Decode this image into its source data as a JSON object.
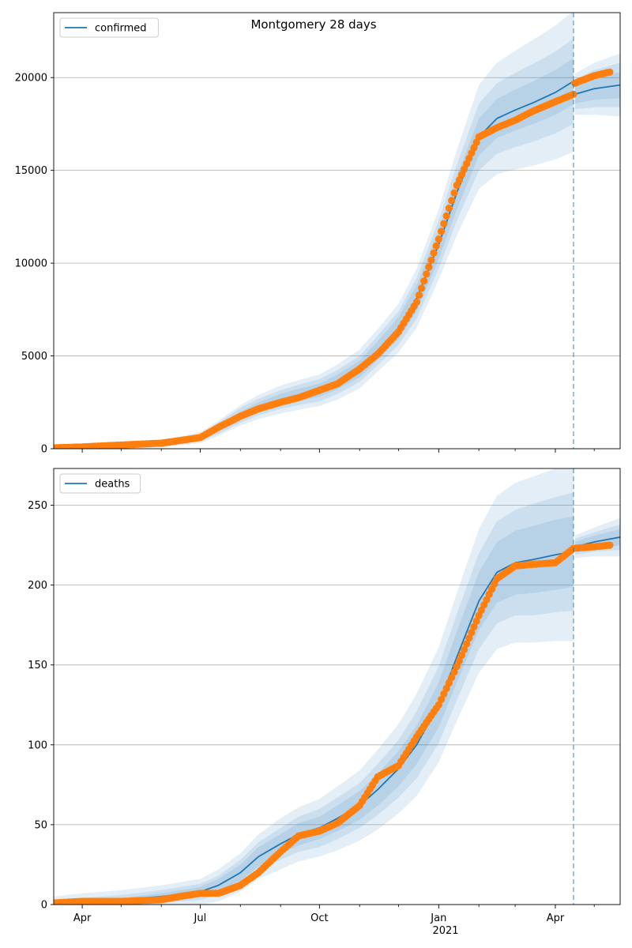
{
  "figure": {
    "suptitle": "Montgomery 28 days"
  },
  "colors": {
    "line": "#1f77b4",
    "points": "#ff7f0e",
    "band": "#1f77b4",
    "grid": "#b0b0b0",
    "forecast_line": "#1f77b4"
  },
  "x_axis": {
    "range": [
      "2020-03-10",
      "2021-05-21"
    ],
    "ticks": [
      {
        "label": "Apr",
        "date": "2020-04-01"
      },
      {
        "label": "Jul",
        "date": "2020-07-01"
      },
      {
        "label": "Oct",
        "date": "2020-10-01"
      },
      {
        "label": "Jan",
        "date": "2021-01-01",
        "year": "2021"
      },
      {
        "label": "Apr",
        "date": "2021-04-01"
      }
    ],
    "minor_ticks": [
      "2020-05-01",
      "2020-06-01",
      "2020-08-01",
      "2020-09-01",
      "2020-11-01",
      "2020-12-01",
      "2021-02-01",
      "2021-03-01",
      "2021-05-01"
    ]
  },
  "chart_data": [
    {
      "type": "line",
      "legend": "confirmed",
      "legend_position": "top-left",
      "grid": "y",
      "forecast_start": "2021-04-15",
      "ylim": [
        0,
        23500
      ],
      "yticks": [
        0,
        5000,
        10000,
        15000,
        20000
      ],
      "model": {
        "x": [
          "2020-03-10",
          "2020-04-01",
          "2020-05-01",
          "2020-06-01",
          "2020-07-01",
          "2020-07-15",
          "2020-08-01",
          "2020-08-15",
          "2020-09-01",
          "2020-09-15",
          "2020-10-01",
          "2020-10-15",
          "2020-11-01",
          "2020-11-15",
          "2020-12-01",
          "2020-12-15",
          "2021-01-01",
          "2021-01-15",
          "2021-02-01",
          "2021-02-15",
          "2021-03-01",
          "2021-03-15",
          "2021-04-01",
          "2021-04-15",
          "2021-04-16",
          "2021-05-01",
          "2021-05-21"
        ],
        "y": [
          50,
          100,
          150,
          250,
          600,
          1100,
          1800,
          2250,
          2650,
          2900,
          3150,
          3600,
          4300,
          5300,
          6500,
          8100,
          11000,
          13800,
          16800,
          17800,
          18250,
          18650,
          19200,
          19800,
          19100,
          19400,
          19600
        ],
        "band_inner": [
          10,
          25,
          40,
          60,
          100,
          150,
          200,
          250,
          300,
          330,
          350,
          400,
          450,
          500,
          600,
          700,
          800,
          900,
          1000,
          1050,
          1100,
          1150,
          1200,
          1250,
          500,
          600,
          700
        ],
        "band_mid": [
          20,
          50,
          80,
          120,
          200,
          300,
          400,
          450,
          500,
          550,
          600,
          650,
          700,
          800,
          900,
          1100,
          1300,
          1500,
          1800,
          1900,
          2000,
          2100,
          2200,
          2300,
          800,
          1000,
          1200
        ],
        "band_outer": [
          40,
          80,
          120,
          180,
          300,
          400,
          550,
          650,
          750,
          800,
          850,
          950,
          1050,
          1150,
          1300,
          1600,
          1900,
          2300,
          2800,
          3000,
          3200,
          3400,
          3600,
          3800,
          1100,
          1400,
          1700
        ]
      },
      "observed": {
        "x": [
          "2020-03-10",
          "2020-04-01",
          "2020-05-01",
          "2020-06-01",
          "2020-07-01",
          "2020-07-15",
          "2020-08-01",
          "2020-08-15",
          "2020-09-01",
          "2020-09-15",
          "2020-10-01",
          "2020-10-15",
          "2020-11-01",
          "2020-11-15",
          "2020-12-01",
          "2020-12-15",
          "2021-01-01",
          "2021-01-15",
          "2021-02-01",
          "2021-02-15",
          "2021-03-01",
          "2021-03-15",
          "2021-04-01",
          "2021-04-15",
          "2021-04-16",
          "2021-05-01",
          "2021-05-13"
        ],
        "y": [
          50,
          100,
          200,
          300,
          600,
          1150,
          1750,
          2150,
          2500,
          2750,
          3150,
          3500,
          4300,
          5100,
          6300,
          7900,
          11300,
          14200,
          16800,
          17300,
          17700,
          18200,
          18700,
          19100,
          19700,
          20100,
          20300
        ]
      }
    },
    {
      "type": "line",
      "legend": "deaths",
      "legend_position": "top-left",
      "grid": "y",
      "forecast_start": "2021-04-15",
      "ylim": [
        0,
        273
      ],
      "yticks": [
        0,
        50,
        100,
        150,
        200,
        250
      ],
      "model": {
        "x": [
          "2020-03-10",
          "2020-04-01",
          "2020-05-01",
          "2020-06-01",
          "2020-07-01",
          "2020-07-15",
          "2020-08-01",
          "2020-08-15",
          "2020-09-01",
          "2020-09-15",
          "2020-10-01",
          "2020-10-15",
          "2020-11-01",
          "2020-11-15",
          "2020-12-01",
          "2020-12-15",
          "2021-01-01",
          "2021-01-15",
          "2021-02-01",
          "2021-02-15",
          "2021-03-01",
          "2021-03-15",
          "2021-04-01",
          "2021-04-15",
          "2021-04-16",
          "2021-05-01",
          "2021-05-21"
        ],
        "y": [
          1,
          2,
          3,
          5,
          8,
          12,
          20,
          30,
          38,
          44,
          48,
          54,
          62,
          72,
          85,
          100,
          125,
          155,
          190,
          208,
          214,
          216,
          219,
          221,
          224,
          227,
          230
        ],
        "band_inner": [
          1,
          1,
          1,
          2,
          3,
          4,
          5,
          6,
          6,
          7,
          7,
          8,
          9,
          10,
          11,
          12,
          14,
          16,
          18,
          19,
          20,
          21,
          22,
          22,
          3,
          4,
          5
        ],
        "band_mid": [
          2,
          2,
          3,
          4,
          5,
          6,
          8,
          9,
          10,
          11,
          12,
          13,
          14,
          16,
          18,
          21,
          24,
          27,
          30,
          32,
          33,
          35,
          36,
          37,
          5,
          6,
          8
        ],
        "band_outer": [
          4,
          5,
          6,
          7,
          8,
          10,
          12,
          14,
          16,
          17,
          18,
          20,
          22,
          25,
          28,
          32,
          36,
          40,
          45,
          48,
          50,
          52,
          54,
          56,
          7,
          9,
          12
        ]
      },
      "observed": {
        "x": [
          "2020-03-10",
          "2020-04-01",
          "2020-05-01",
          "2020-06-01",
          "2020-06-15",
          "2020-07-01",
          "2020-07-15",
          "2020-08-01",
          "2020-08-15",
          "2020-09-01",
          "2020-09-15",
          "2020-10-01",
          "2020-10-15",
          "2020-11-01",
          "2020-11-15",
          "2020-12-01",
          "2020-12-15",
          "2021-01-01",
          "2021-01-15",
          "2021-02-01",
          "2021-02-15",
          "2021-03-01",
          "2021-03-15",
          "2021-04-01",
          "2021-04-15",
          "2021-05-01",
          "2021-05-13"
        ],
        "y": [
          1,
          2,
          2,
          3,
          5,
          7,
          7,
          12,
          20,
          33,
          43,
          46,
          51,
          62,
          80,
          87,
          105,
          125,
          149,
          181,
          204,
          212,
          213,
          214,
          223,
          224,
          225
        ]
      }
    }
  ]
}
